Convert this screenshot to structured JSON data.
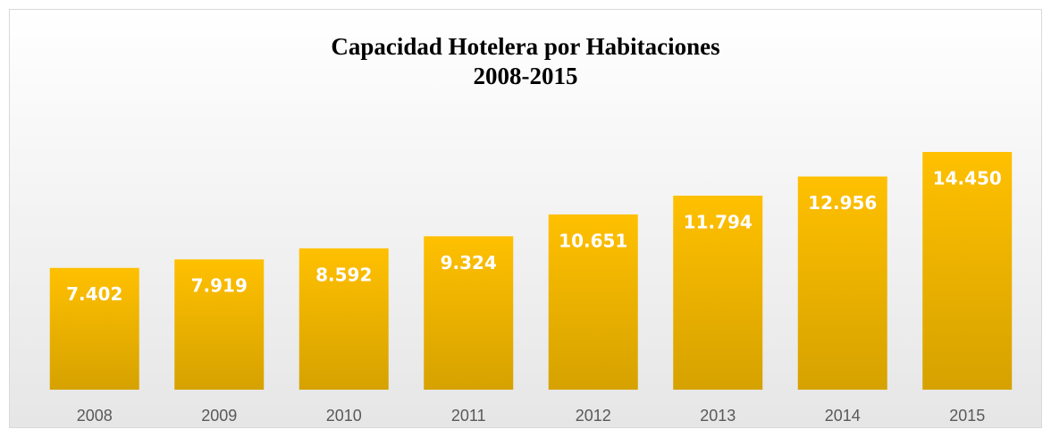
{
  "chart_data": {
    "type": "bar",
    "title": "Capacidad Hotelera por Habitaciones",
    "subtitle": "2008-2015",
    "categories": [
      "2008",
      "2009",
      "2010",
      "2011",
      "2012",
      "2013",
      "2014",
      "2015"
    ],
    "values": [
      7402,
      7919,
      8592,
      9324,
      10651,
      11794,
      12956,
      14450
    ],
    "value_labels": [
      "7.402",
      "7.919",
      "8.592",
      "9.324",
      "10.651",
      "11.794",
      "12.956",
      "14.450"
    ],
    "color": "#ffc000"
  }
}
